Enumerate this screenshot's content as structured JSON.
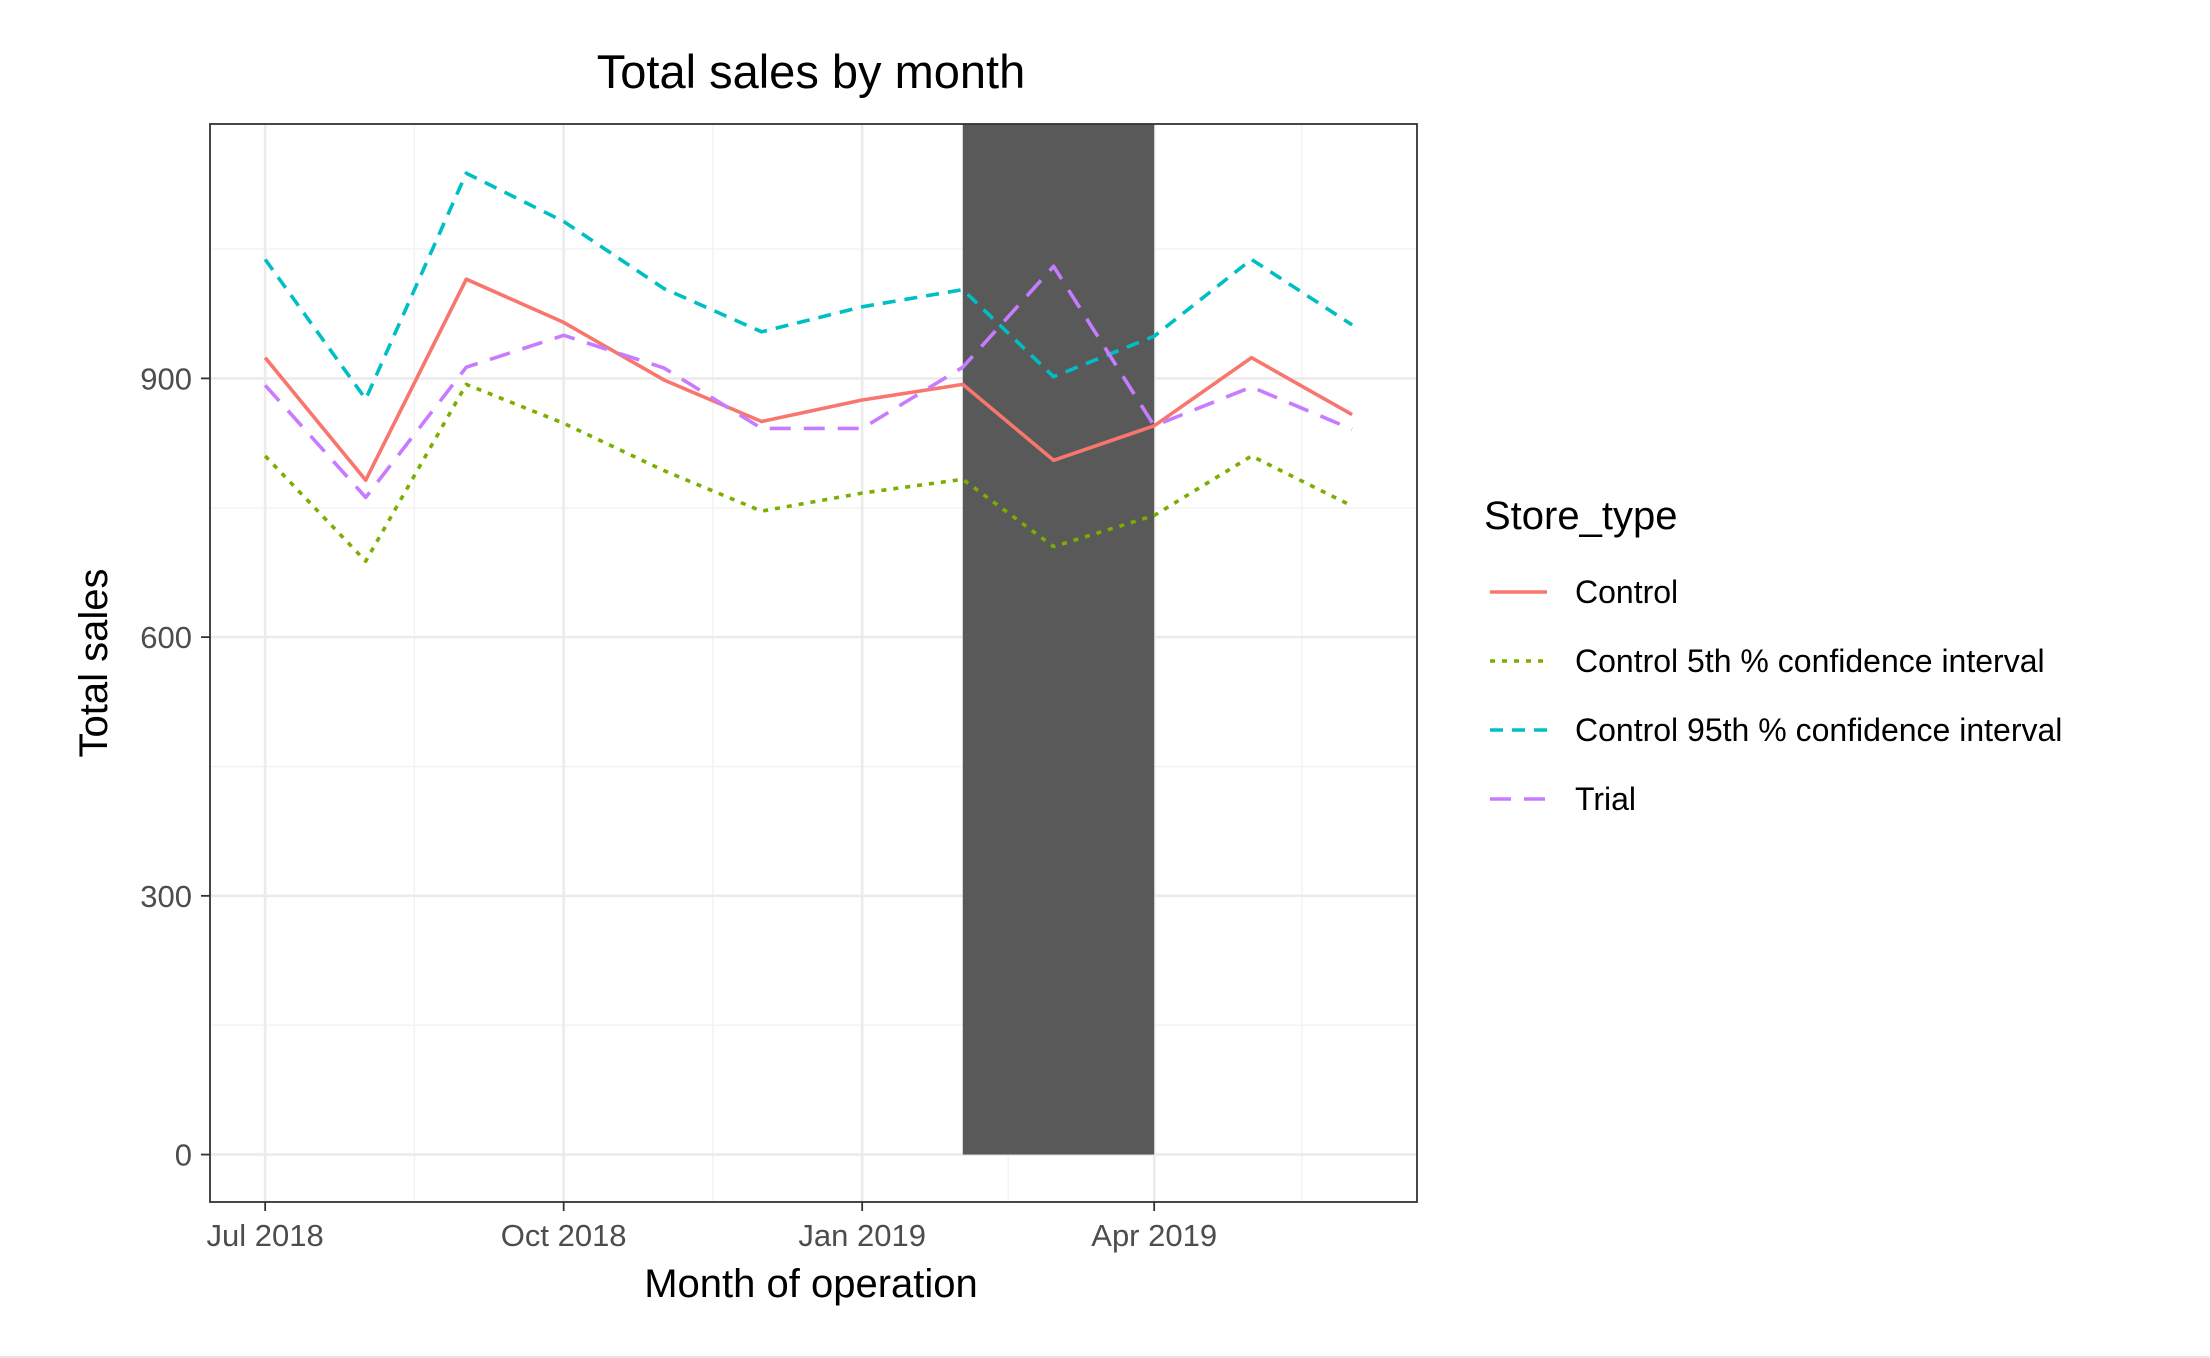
{
  "chart_data": {
    "type": "line",
    "title": "Total sales by month",
    "xlabel": "Month of operation",
    "ylabel": "Total sales",
    "x": [
      "2018-07",
      "2018-08",
      "2018-09",
      "2018-10",
      "2018-11",
      "2018-12",
      "2019-01",
      "2019-02",
      "2019-03",
      "2019-04",
      "2019-05",
      "2019-06"
    ],
    "x_ticks": [
      {
        "value": "2018-07",
        "label": "Jul 2018"
      },
      {
        "value": "2018-10",
        "label": "Oct 2018"
      },
      {
        "value": "2019-01",
        "label": "Jan 2019"
      },
      {
        "value": "2019-04",
        "label": "Apr 2019"
      }
    ],
    "y_ticks": [
      0,
      300,
      600,
      900
    ],
    "ylim": [
      -55,
      1195
    ],
    "xlim": [
      "2018-06-14",
      "2019-06-21"
    ],
    "grid": true,
    "highlight_band": {
      "x_start": "2019-02",
      "x_end": "2019-04",
      "y_start": 0,
      "y_end": 1195,
      "color": "#595959"
    },
    "legend": {
      "title": "Store_type",
      "position": "right"
    },
    "series": [
      {
        "name": "Control",
        "color": "#f8766d",
        "dash": "solid",
        "values": [
          924,
          782,
          1015,
          965,
          898,
          850,
          875,
          893,
          805,
          845,
          924,
          858
        ]
      },
      {
        "name": "Control 5th % confidence interval",
        "color": "#7cae00",
        "dash": "dotted",
        "values": [
          810,
          688,
          893,
          848,
          793,
          746,
          767,
          783,
          705,
          741,
          810,
          752
        ]
      },
      {
        "name": "Control 95th % confidence interval",
        "color": "#00bfc4",
        "dash": "dashed",
        "values": [
          1038,
          876,
          1138,
          1082,
          1004,
          954,
          983,
          1003,
          902,
          949,
          1038,
          962
        ]
      },
      {
        "name": "Trial",
        "color": "#c77cff",
        "dash": "longdash",
        "values": [
          892,
          762,
          913,
          950,
          912,
          842,
          842,
          913,
          1030,
          845,
          890,
          841
        ]
      }
    ]
  }
}
